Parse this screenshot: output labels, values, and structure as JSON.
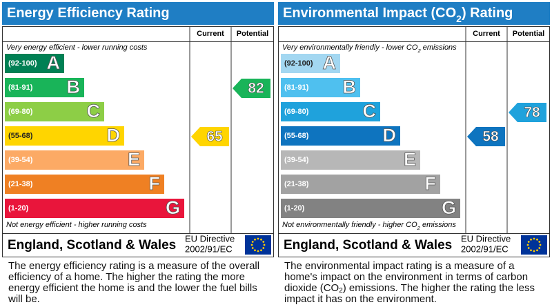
{
  "columns": {
    "current": "Current",
    "potential": "Potential"
  },
  "panels": [
    {
      "title": [
        {
          "text": "Energy Efficiency Rating"
        }
      ],
      "top_note": [
        {
          "text": "Very energy efficient - lower running costs"
        }
      ],
      "bottom_note": [
        {
          "text": "Not energy efficient - higher running costs"
        }
      ],
      "bands": [
        {
          "range": "(92-100)",
          "letter": "A",
          "color": "#008054"
        },
        {
          "range": "(81-91)",
          "letter": "B",
          "color": "#19b459"
        },
        {
          "range": "(69-80)",
          "letter": "C",
          "color": "#8dce46"
        },
        {
          "range": "(55-68)",
          "letter": "D",
          "color": "#ffd500"
        },
        {
          "range": "(39-54)",
          "letter": "E",
          "color": "#fcaa65"
        },
        {
          "range": "(21-38)",
          "letter": "F",
          "color": "#ef8023"
        },
        {
          "range": "(1-20)",
          "letter": "G",
          "color": "#e9153b"
        }
      ],
      "current": 65,
      "potential": 82,
      "region": "England, Scotland & Wales",
      "directive": [
        "EU Directive",
        "2002/91/EC"
      ],
      "description": [
        {
          "text": "The energy efficiency rating is a measure of the overall efficiency of a home. The higher the rating the more energy efficient the home is and the lower the fuel bills will be."
        }
      ]
    },
    {
      "title": [
        {
          "text": "Environmental Impact (CO"
        },
        {
          "text": "2",
          "sub": true
        },
        {
          "text": ") Rating"
        }
      ],
      "top_note": [
        {
          "text": "Very environmentally friendly - lower CO"
        },
        {
          "text": "2",
          "sub": true
        },
        {
          "text": " emissions"
        }
      ],
      "bottom_note": [
        {
          "text": "Not environmentally friendly - higher CO"
        },
        {
          "text": "2",
          "sub": true
        },
        {
          "text": " emissions"
        }
      ],
      "bands": [
        {
          "range": "(92-100)",
          "letter": "A",
          "color": "#a3d7f1"
        },
        {
          "range": "(81-91)",
          "letter": "B",
          "color": "#4fc0ef"
        },
        {
          "range": "(69-80)",
          "letter": "C",
          "color": "#1fa2dc"
        },
        {
          "range": "(55-68)",
          "letter": "D",
          "color": "#0e74bf"
        },
        {
          "range": "(39-54)",
          "letter": "E",
          "color": "#b7b7b7"
        },
        {
          "range": "(21-38)",
          "letter": "F",
          "color": "#a2a2a2"
        },
        {
          "range": "(1-20)",
          "letter": "G",
          "color": "#828282"
        }
      ],
      "current": 58,
      "potential": 78,
      "region": "England, Scotland & Wales",
      "directive": [
        "EU Directive",
        "2002/91/EC"
      ],
      "description": [
        {
          "text": "The environmental impact rating is a measure of a home's impact on the environment in terms of carbon dioxide (CO"
        },
        {
          "text": "2",
          "sub": true
        },
        {
          "text": ") emissions. The higher the rating the less impact it has on the environment."
        }
      ]
    }
  ]
}
